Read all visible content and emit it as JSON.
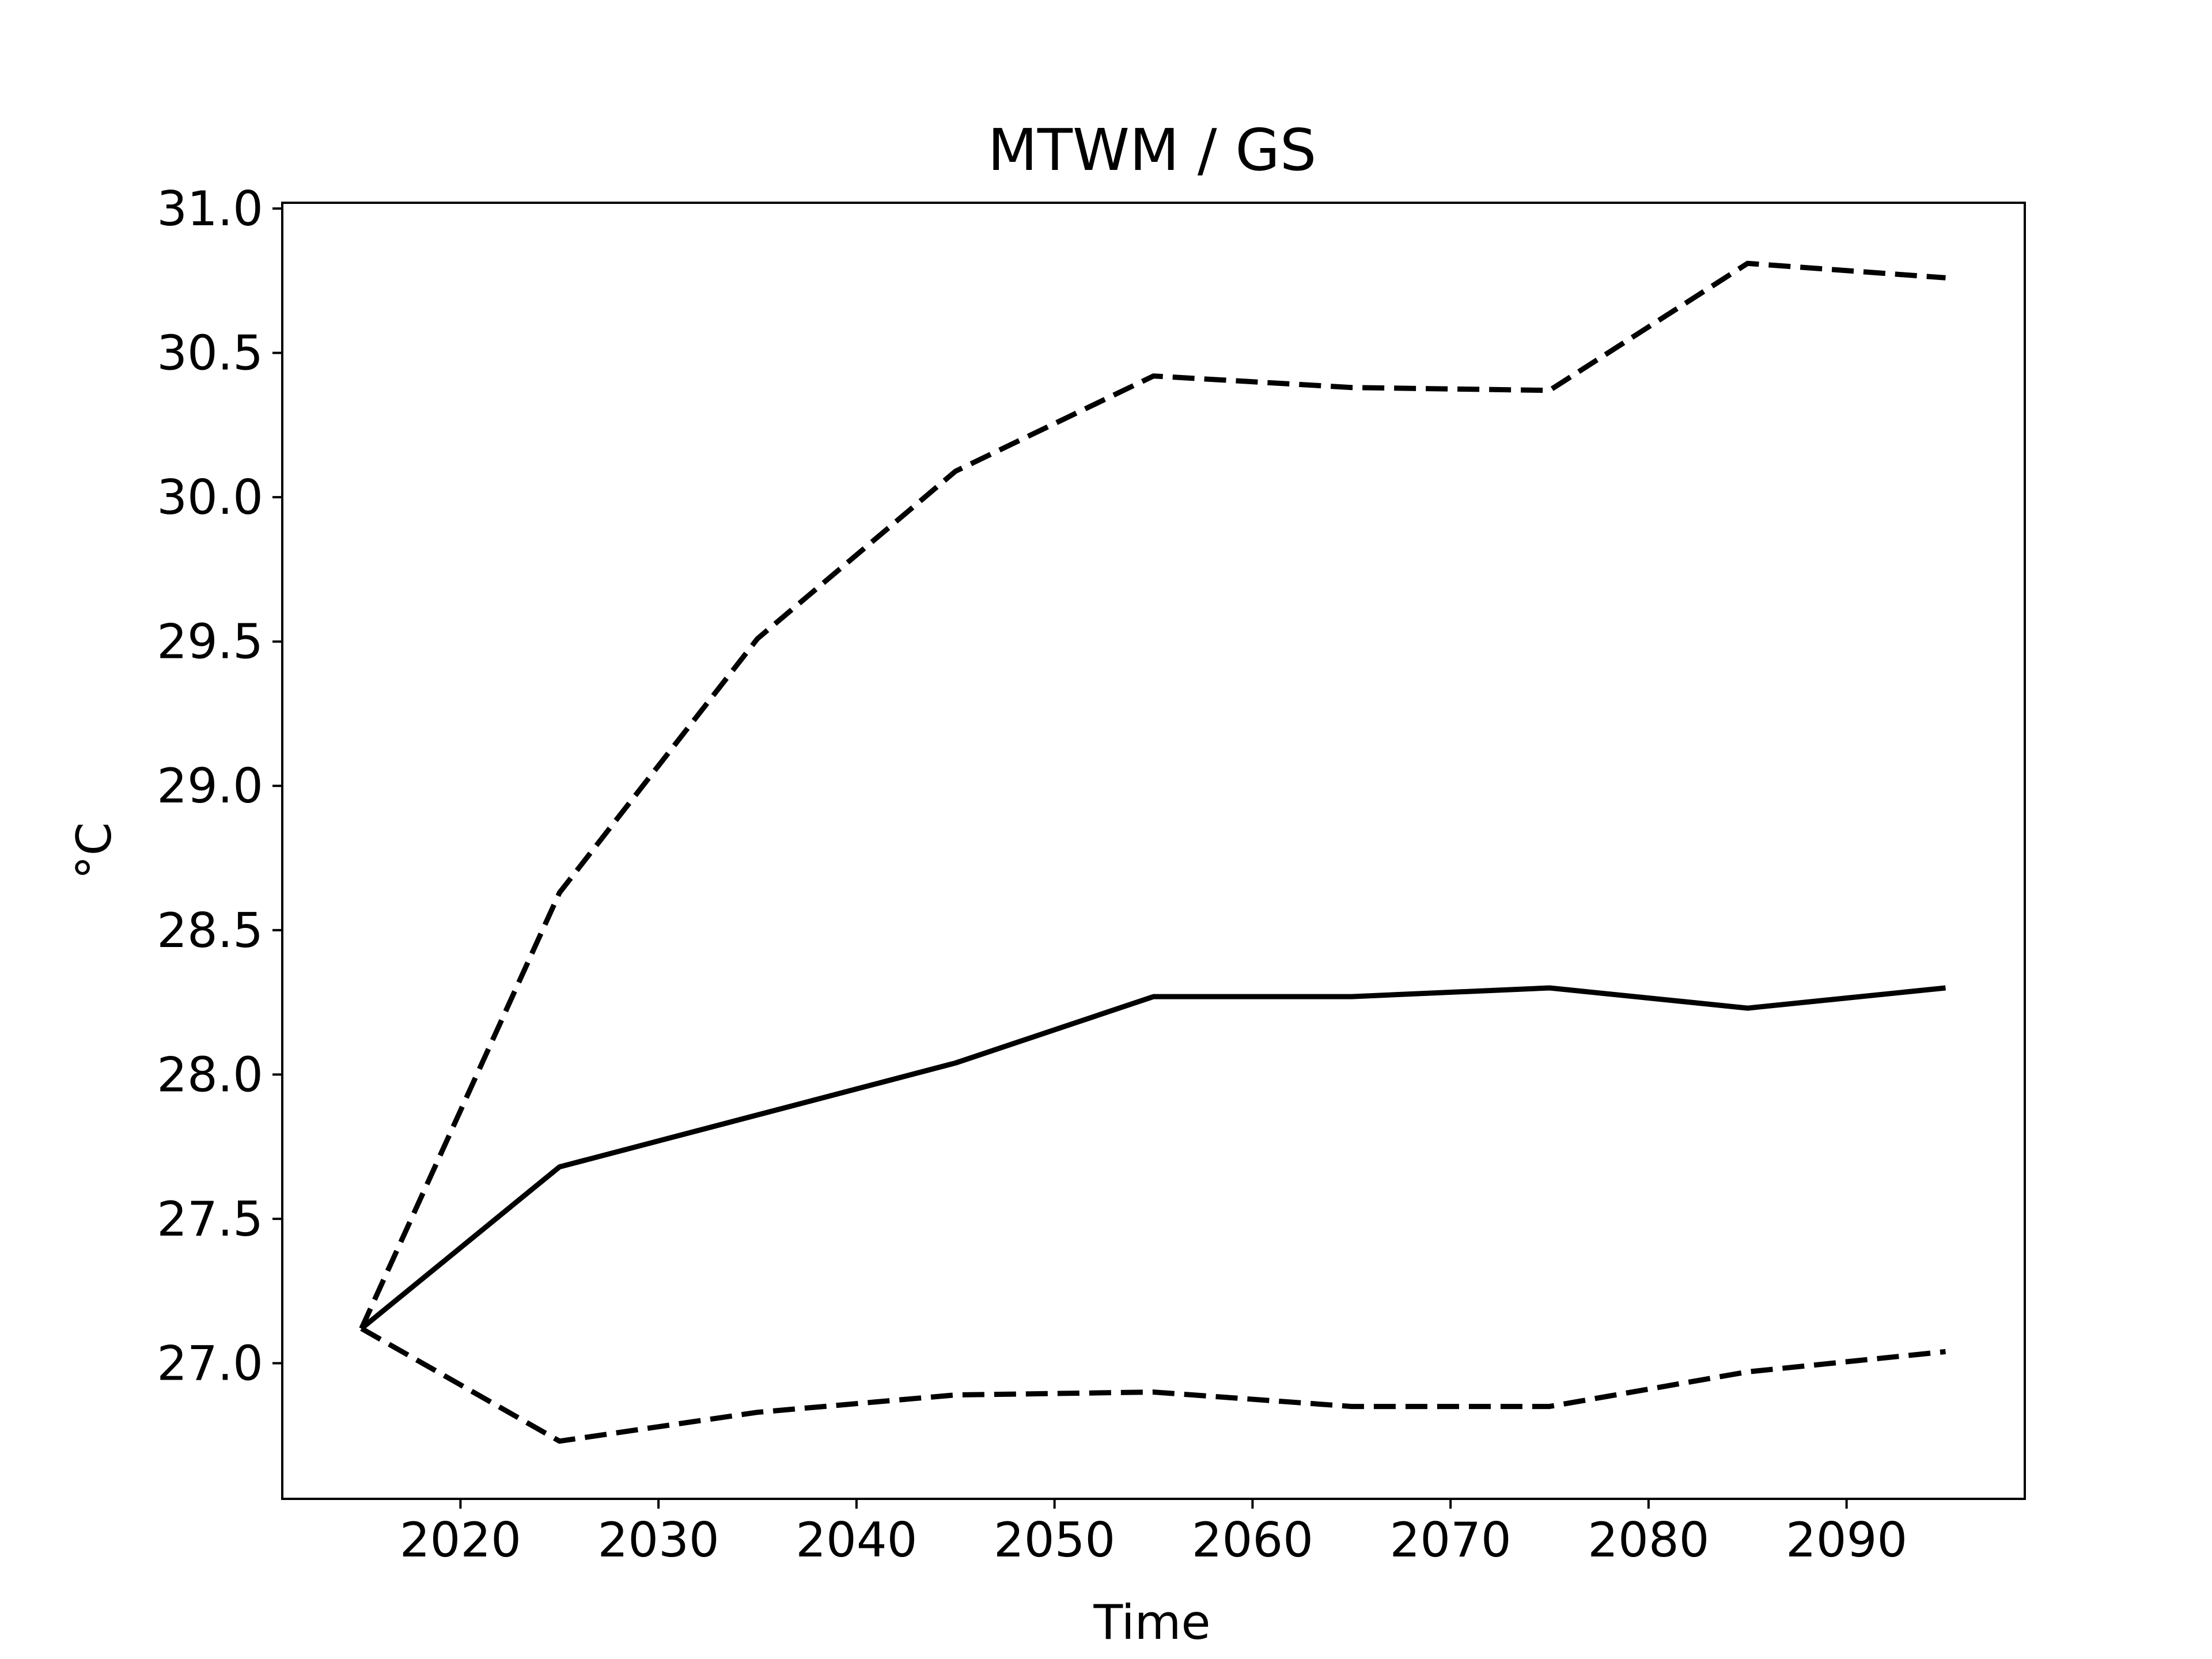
{
  "chart_data": {
    "type": "line",
    "title": "MTWM / GS",
    "xlabel": "Time",
    "ylabel": "°C",
    "xlim": [
      2011,
      2099
    ],
    "ylim": [
      26.53,
      31.02
    ],
    "xticks": [
      2020,
      2030,
      2040,
      2050,
      2060,
      2070,
      2080,
      2090
    ],
    "xtick_labels": [
      "2020",
      "2030",
      "2040",
      "2050",
      "2060",
      "2070",
      "2080",
      "2090"
    ],
    "yticks": [
      27.0,
      27.5,
      28.0,
      28.5,
      29.0,
      29.5,
      30.0,
      30.5,
      31.0
    ],
    "ytick_labels": [
      "27.0",
      "27.5",
      "28.0",
      "28.5",
      "29.0",
      "29.5",
      "30.0",
      "30.5",
      "31.0"
    ],
    "grid": false,
    "legend": "none",
    "x": [
      2015,
      2025,
      2035,
      2045,
      2055,
      2065,
      2075,
      2085,
      2095
    ],
    "series": [
      {
        "style": "dashed",
        "color": "#000000",
        "values": [
          27.12,
          28.63,
          29.51,
          30.09,
          30.42,
          30.38,
          30.37,
          30.81,
          30.76
        ]
      },
      {
        "style": "solid",
        "color": "#000000",
        "values": [
          27.12,
          27.68,
          27.86,
          28.04,
          28.27,
          28.27,
          28.3,
          28.23,
          28.3
        ]
      },
      {
        "style": "dashed",
        "color": "#000000",
        "values": [
          27.12,
          26.73,
          26.83,
          26.89,
          26.9,
          26.85,
          26.85,
          26.97,
          27.04
        ]
      }
    ]
  }
}
